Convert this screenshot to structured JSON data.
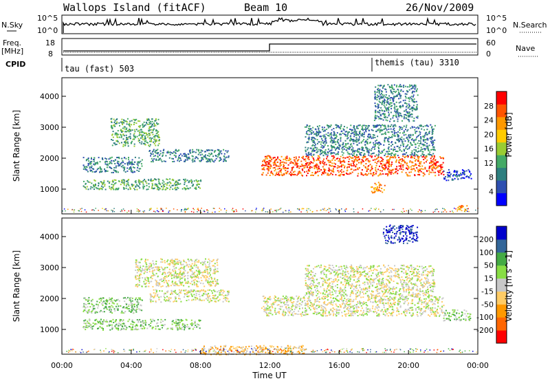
{
  "header": {
    "site": "Wallops Island (fitACF)",
    "beam": "Beam 10",
    "date": "26/Nov/2009"
  },
  "nsky": {
    "label": "N.Sky",
    "tick_top": "10^5",
    "tick_bottom": "10^0",
    "right_label": "N.Search",
    "right_tick_top": "10^5",
    "right_tick_bottom": "10^0"
  },
  "freq": {
    "label_line1": "Freq.",
    "label_line2": "[MHz]",
    "tick_top": "18",
    "tick_bottom": "8",
    "right_label": "Nave",
    "right_tick_top": "60",
    "right_tick_bottom": "0"
  },
  "cpid": {
    "label": "CPID",
    "mode1": "tau (fast) 503",
    "mode2": "themis (tau) 3310"
  },
  "colors": {
    "power": [
      "#0000ff",
      "#2e4fb0",
      "#2e7f7f",
      "#44aa66",
      "#99cc33",
      "#ffcc00",
      "#ff9900",
      "#ff5500",
      "#ff0000"
    ],
    "velocity": [
      "#ff0000",
      "#ff6600",
      "#ff9900",
      "#ffcc66",
      "#c8c8c8",
      "#88dd44",
      "#44aa44",
      "#336699",
      "#0000cc"
    ],
    "ground": "#c8c8c8"
  },
  "chart_data": [
    {
      "type": "heatmap",
      "id": "power",
      "ylabel": "Slant Range [km]",
      "yticks": [
        1000,
        2000,
        3000,
        4000
      ],
      "ylim": [
        200,
        4600
      ],
      "xlim": [
        0,
        24
      ],
      "colorbar_label": "Power [dB]",
      "colorbar_ticks": [
        "4",
        "8",
        "12",
        "16",
        "20",
        "24",
        "28"
      ],
      "regions": [
        {
          "t0": 2.8,
          "t1": 5.6,
          "r0": 2400,
          "r1": 3300,
          "level": 3
        },
        {
          "t0": 1.2,
          "t1": 4.6,
          "r0": 1550,
          "r1": 2050,
          "level": 2
        },
        {
          "t0": 5.0,
          "t1": 9.6,
          "r0": 1900,
          "r1": 2300,
          "level": 2
        },
        {
          "t0": 1.2,
          "t1": 8.0,
          "r0": 1000,
          "r1": 1350,
          "level": 3
        },
        {
          "t0": 11.5,
          "t1": 22.0,
          "r0": 1450,
          "r1": 2100,
          "level": 7
        },
        {
          "t0": 14.0,
          "t1": 21.5,
          "r0": 2100,
          "r1": 3100,
          "level": 2
        },
        {
          "t0": 18.0,
          "t1": 20.5,
          "r0": 3200,
          "r1": 4400,
          "level": 2
        },
        {
          "t0": 17.8,
          "t1": 18.6,
          "r0": 900,
          "r1": 1250,
          "level": 6
        },
        {
          "t0": 22.0,
          "t1": 23.6,
          "r0": 1300,
          "r1": 1650,
          "level": 1
        },
        {
          "t0": 22.8,
          "t1": 23.4,
          "r0": 300,
          "r1": 500,
          "level": 6
        }
      ]
    },
    {
      "type": "heatmap",
      "id": "velocity",
      "ylabel": "Slant Range [km]",
      "yticks": [
        1000,
        2000,
        3000,
        4000
      ],
      "ylim": [
        200,
        4600
      ],
      "xlim": [
        0,
        24
      ],
      "xticks": [
        "00:00",
        "04:00",
        "08:00",
        "12:00",
        "16:00",
        "20:00",
        "00:00"
      ],
      "xlabel": "Time UT",
      "colorbar_label": "Velocity [m s^-1]",
      "colorbar_ticks": [
        "-200",
        "-100",
        "-50",
        "-15",
        "15",
        "50",
        "100",
        "200"
      ],
      "regions": [
        {
          "t0": 4.2,
          "t1": 9.0,
          "r0": 2400,
          "r1": 3300,
          "level": 4
        },
        {
          "t0": 1.2,
          "t1": 4.6,
          "r0": 1550,
          "r1": 2050,
          "level": 5
        },
        {
          "t0": 5.0,
          "t1": 9.6,
          "r0": 1900,
          "r1": 2300,
          "level": 4
        },
        {
          "t0": 1.2,
          "t1": 8.0,
          "r0": 1000,
          "r1": 1350,
          "level": 5
        },
        {
          "t0": 11.5,
          "t1": 22.0,
          "r0": 1450,
          "r1": 2100,
          "level": 4
        },
        {
          "t0": 14.0,
          "t1": 21.5,
          "r0": 2100,
          "r1": 3100,
          "level": 4
        },
        {
          "t0": 18.5,
          "t1": 20.5,
          "r0": 3800,
          "r1": 4400,
          "level": 8
        },
        {
          "t0": 22.0,
          "t1": 23.6,
          "r0": 1300,
          "r1": 1650,
          "level": 5
        },
        {
          "t0": 8.0,
          "t1": 14.0,
          "r0": 200,
          "r1": 500,
          "level": 3
        }
      ]
    }
  ]
}
